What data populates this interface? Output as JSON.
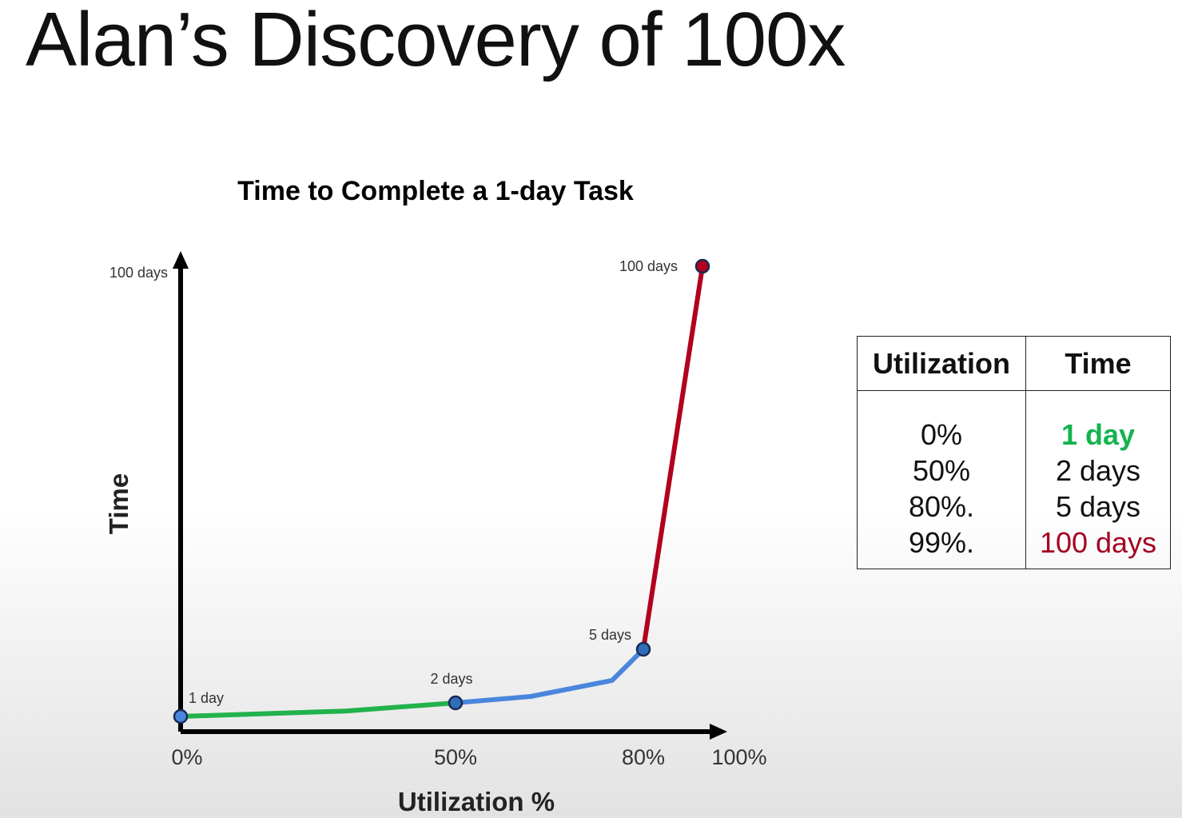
{
  "slide": {
    "title": "Alan’s Discovery of 100x"
  },
  "chart_data": {
    "type": "line",
    "title": "Time to Complete a 1-day Task",
    "xlabel": "Utilization %",
    "ylabel": "Time",
    "x_ticks": [
      "0%",
      "50%",
      "80%",
      "100%"
    ],
    "y_ticks": [
      "100 days"
    ],
    "xlim": [
      0,
      100
    ],
    "ylim": [
      0,
      100
    ],
    "series": [
      {
        "color": "#22b24c",
        "points": [
          [
            0,
            1
          ],
          [
            30,
            1.4
          ],
          [
            50,
            2
          ]
        ]
      },
      {
        "color": "#4a86dc",
        "points": [
          [
            50,
            2
          ],
          [
            62,
            2.8
          ],
          [
            75,
            4.5
          ],
          [
            80,
            5
          ]
        ]
      },
      {
        "color": "#b2001f",
        "points": [
          [
            80,
            5
          ],
          [
            99,
            100
          ]
        ]
      }
    ],
    "markers": [
      {
        "x": 0,
        "y": 1,
        "label": "1 day"
      },
      {
        "x": 50,
        "y": 2,
        "label": "2 days"
      },
      {
        "x": 80,
        "y": 5,
        "label": "5 days"
      },
      {
        "x": 99,
        "y": 100,
        "label": "100 days"
      }
    ],
    "grid": false,
    "legend": "none"
  },
  "table": {
    "headers": [
      "Utilization",
      "Time"
    ],
    "utilization": [
      "0%",
      "50%",
      "80%.",
      "99%."
    ],
    "time": [
      "1 day",
      "2 days",
      "5 days",
      "100 days"
    ],
    "colors": {
      "best": "#14b350",
      "worst": "#a4001f"
    }
  }
}
